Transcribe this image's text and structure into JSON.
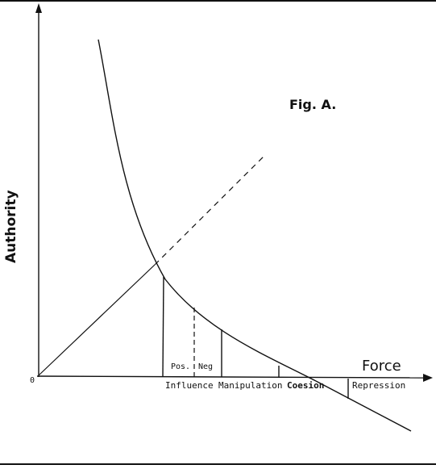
{
  "figure": {
    "title": "Fig. A.",
    "y_axis_label": "Authority",
    "x_axis_label": "Force",
    "origin_label": "0",
    "sub_labels": [
      "Pos.",
      "Neg"
    ],
    "regions": [
      "Influence",
      "Manipulation",
      "Coesion",
      "Repression"
    ],
    "colors": {
      "ink": "#111111",
      "background": "#ffffff"
    }
  }
}
